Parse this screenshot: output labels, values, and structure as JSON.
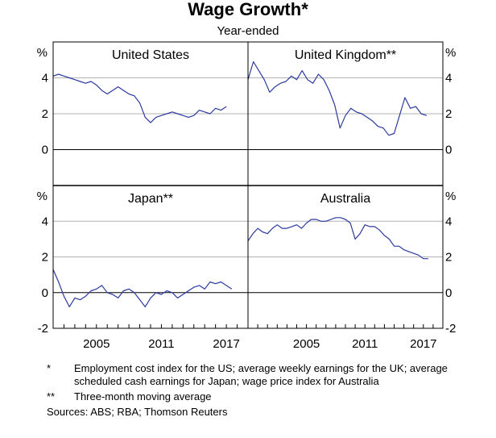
{
  "chart_data": {
    "type": "line",
    "title": "Wage Growth*",
    "subtitle": "Year-ended",
    "ylim": [
      -2,
      6
    ],
    "yticks": [
      "-2",
      "0",
      "2",
      "4"
    ],
    "yunit": "%",
    "grid": true,
    "xlabels": [
      "2005",
      "2011",
      "2017"
    ],
    "panels": [
      {
        "name": "United States",
        "label": "United States",
        "xrange": [
          2001.0,
          2019.0
        ],
        "points": [
          [
            2001.0,
            4.1
          ],
          [
            2001.5,
            4.2
          ],
          [
            2002.0,
            4.1
          ],
          [
            2002.5,
            4.0
          ],
          [
            2003.0,
            3.9
          ],
          [
            2003.5,
            3.8
          ],
          [
            2004.0,
            3.7
          ],
          [
            2004.5,
            3.8
          ],
          [
            2005.0,
            3.6
          ],
          [
            2005.5,
            3.3
          ],
          [
            2006.0,
            3.1
          ],
          [
            2006.5,
            3.3
          ],
          [
            2007.0,
            3.5
          ],
          [
            2007.5,
            3.3
          ],
          [
            2008.0,
            3.1
          ],
          [
            2008.5,
            3.0
          ],
          [
            2009.0,
            2.6
          ],
          [
            2009.5,
            1.8
          ],
          [
            2010.0,
            1.5
          ],
          [
            2010.5,
            1.8
          ],
          [
            2011.0,
            1.9
          ],
          [
            2011.5,
            2.0
          ],
          [
            2012.0,
            2.1
          ],
          [
            2012.5,
            2.0
          ],
          [
            2013.0,
            1.9
          ],
          [
            2013.5,
            1.8
          ],
          [
            2014.0,
            1.9
          ],
          [
            2014.5,
            2.2
          ],
          [
            2015.0,
            2.1
          ],
          [
            2015.5,
            2.0
          ],
          [
            2016.0,
            2.3
          ],
          [
            2016.5,
            2.2
          ],
          [
            2017.0,
            2.4
          ]
        ]
      },
      {
        "name": "United Kingdom",
        "label": "United Kingdom**",
        "xrange": [
          2001.0,
          2019.0
        ],
        "points": [
          [
            2001.0,
            3.9
          ],
          [
            2001.5,
            4.9
          ],
          [
            2002.0,
            4.4
          ],
          [
            2002.5,
            3.9
          ],
          [
            2003.0,
            3.2
          ],
          [
            2003.5,
            3.5
          ],
          [
            2004.0,
            3.7
          ],
          [
            2004.5,
            3.8
          ],
          [
            2005.0,
            4.1
          ],
          [
            2005.5,
            3.9
          ],
          [
            2006.0,
            4.4
          ],
          [
            2006.5,
            3.9
          ],
          [
            2007.0,
            3.7
          ],
          [
            2007.5,
            4.2
          ],
          [
            2008.0,
            3.9
          ],
          [
            2008.5,
            3.3
          ],
          [
            2009.0,
            2.5
          ],
          [
            2009.5,
            1.2
          ],
          [
            2010.0,
            1.9
          ],
          [
            2010.5,
            2.3
          ],
          [
            2011.0,
            2.1
          ],
          [
            2011.5,
            2.0
          ],
          [
            2012.0,
            1.8
          ],
          [
            2012.5,
            1.6
          ],
          [
            2013.0,
            1.3
          ],
          [
            2013.5,
            1.2
          ],
          [
            2014.0,
            0.8
          ],
          [
            2014.5,
            0.9
          ],
          [
            2015.0,
            1.9
          ],
          [
            2015.5,
            2.9
          ],
          [
            2016.0,
            2.3
          ],
          [
            2016.5,
            2.4
          ],
          [
            2017.0,
            2.0
          ],
          [
            2017.5,
            1.9
          ]
        ]
      },
      {
        "name": "Japan",
        "label": "Japan**",
        "xrange": [
          2001.0,
          2019.0
        ],
        "points": [
          [
            2001.0,
            1.3
          ],
          [
            2001.5,
            0.6
          ],
          [
            2002.0,
            -0.2
          ],
          [
            2002.5,
            -0.8
          ],
          [
            2003.0,
            -0.3
          ],
          [
            2003.5,
            -0.4
          ],
          [
            2004.0,
            -0.2
          ],
          [
            2004.5,
            0.1
          ],
          [
            2005.0,
            0.2
          ],
          [
            2005.5,
            0.4
          ],
          [
            2006.0,
            0.0
          ],
          [
            2006.5,
            -0.1
          ],
          [
            2007.0,
            -0.3
          ],
          [
            2007.5,
            0.1
          ],
          [
            2008.0,
            0.2
          ],
          [
            2008.5,
            0.0
          ],
          [
            2009.0,
            -0.4
          ],
          [
            2009.5,
            -0.8
          ],
          [
            2010.0,
            -0.3
          ],
          [
            2010.5,
            0.0
          ],
          [
            2011.0,
            -0.1
          ],
          [
            2011.5,
            0.1
          ],
          [
            2012.0,
            0.0
          ],
          [
            2012.5,
            -0.3
          ],
          [
            2013.0,
            -0.1
          ],
          [
            2013.5,
            0.1
          ],
          [
            2014.0,
            0.3
          ],
          [
            2014.5,
            0.4
          ],
          [
            2015.0,
            0.2
          ],
          [
            2015.5,
            0.6
          ],
          [
            2016.0,
            0.5
          ],
          [
            2016.5,
            0.6
          ],
          [
            2017.0,
            0.4
          ],
          [
            2017.5,
            0.2
          ]
        ]
      },
      {
        "name": "Australia",
        "label": "Australia",
        "xrange": [
          1999.0,
          2019.0
        ],
        "points": [
          [
            1999.0,
            2.9
          ],
          [
            1999.5,
            3.3
          ],
          [
            2000.0,
            3.6
          ],
          [
            2000.5,
            3.4
          ],
          [
            2001.0,
            3.3
          ],
          [
            2001.5,
            3.6
          ],
          [
            2002.0,
            3.8
          ],
          [
            2002.5,
            3.6
          ],
          [
            2003.0,
            3.6
          ],
          [
            2003.5,
            3.7
          ],
          [
            2004.0,
            3.8
          ],
          [
            2004.5,
            3.6
          ],
          [
            2005.0,
            3.9
          ],
          [
            2005.5,
            4.1
          ],
          [
            2006.0,
            4.1
          ],
          [
            2006.5,
            4.0
          ],
          [
            2007.0,
            4.0
          ],
          [
            2007.5,
            4.1
          ],
          [
            2008.0,
            4.2
          ],
          [
            2008.5,
            4.2
          ],
          [
            2009.0,
            4.1
          ],
          [
            2009.5,
            3.9
          ],
          [
            2010.0,
            3.0
          ],
          [
            2010.5,
            3.3
          ],
          [
            2011.0,
            3.8
          ],
          [
            2011.5,
            3.7
          ],
          [
            2012.0,
            3.7
          ],
          [
            2012.5,
            3.5
          ],
          [
            2013.0,
            3.2
          ],
          [
            2013.5,
            3.0
          ],
          [
            2014.0,
            2.6
          ],
          [
            2014.5,
            2.6
          ],
          [
            2015.0,
            2.4
          ],
          [
            2015.5,
            2.3
          ],
          [
            2016.0,
            2.2
          ],
          [
            2016.5,
            2.1
          ],
          [
            2017.0,
            1.9
          ],
          [
            2017.5,
            1.9
          ]
        ]
      }
    ]
  },
  "notes": [
    {
      "mark": "*",
      "text": "Employment cost index for the US; average weekly earnings for the UK; average scheduled cash earnings for Japan; wage price index for Australia"
    },
    {
      "mark": "**",
      "text": "Three-month moving average"
    }
  ],
  "sources": "Sources:   ABS; RBA; Thomson Reuters"
}
